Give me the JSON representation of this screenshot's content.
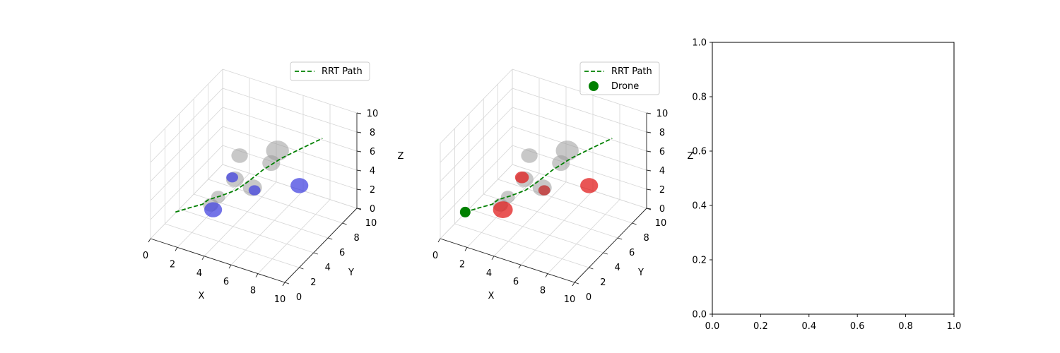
{
  "figure": {
    "background": "#ffffff"
  },
  "chart_data": [
    {
      "type": "scatter",
      "projection": "3d",
      "xlabel": "X",
      "ylabel": "Y",
      "zlabel": "Z",
      "xlim": [
        0,
        10
      ],
      "ylim": [
        0,
        10
      ],
      "zlim": [
        0,
        10
      ],
      "xticks": [
        "0",
        "2",
        "4",
        "6",
        "8",
        "10"
      ],
      "yticks": [
        "0",
        "2",
        "4",
        "6",
        "8",
        "10"
      ],
      "zticks": [
        "0",
        "2",
        "4",
        "6",
        "8",
        "10"
      ],
      "grid": true,
      "legend_position": "top-right",
      "legend": [
        {
          "label": "RRT Path",
          "style": "dashed-line",
          "color": "#008000"
        }
      ],
      "obstacles": [
        {
          "x": 2.6,
          "y": 3.5,
          "z": 2.0,
          "r": 0.6
        },
        {
          "x": 3.0,
          "y": 3.8,
          "z": 2.8,
          "r": 0.55
        },
        {
          "x": 3.6,
          "y": 5.0,
          "z": 4.0,
          "r": 0.7
        },
        {
          "x": 3.2,
          "y": 6.4,
          "z": 5.2,
          "r": 0.65
        },
        {
          "x": 4.8,
          "y": 5.2,
          "z": 3.5,
          "r": 0.75
        },
        {
          "x": 5.5,
          "y": 6.5,
          "z": 5.4,
          "r": 0.7
        },
        {
          "x": 5.7,
          "y": 7.0,
          "z": 6.4,
          "r": 0.9
        }
      ],
      "markers": [
        {
          "x": 3.0,
          "y": 3.1,
          "z": 2.0,
          "r": 0.45,
          "color": "#3f3fdf"
        },
        {
          "x": 3.4,
          "y": 5.0,
          "z": 4.1,
          "r": 0.3,
          "color": "#3f3fdf"
        },
        {
          "x": 4.9,
          "y": 5.3,
          "z": 3.2,
          "r": 0.3,
          "color": "#3f3fdf"
        },
        {
          "x": 7.6,
          "y": 6.5,
          "z": 4.0,
          "r": 0.45,
          "color": "#3f3fdf"
        }
      ],
      "series": [
        {
          "name": "RRT Path",
          "style": "dashed",
          "color": "#008000",
          "points": [
            {
              "x": 1.0,
              "y": 1.6,
              "z": 2.0
            },
            {
              "x": 1.6,
              "y": 2.4,
              "z": 2.1
            },
            {
              "x": 2.2,
              "y": 3.1,
              "z": 2.2
            },
            {
              "x": 2.6,
              "y": 3.2,
              "z": 2.8
            },
            {
              "x": 3.3,
              "y": 3.6,
              "z": 3.2
            },
            {
              "x": 4.0,
              "y": 4.4,
              "z": 3.5
            },
            {
              "x": 4.6,
              "y": 5.1,
              "z": 4.2
            },
            {
              "x": 5.3,
              "y": 5.7,
              "z": 5.2
            },
            {
              "x": 6.3,
              "y": 6.5,
              "z": 6.3
            },
            {
              "x": 7.4,
              "y": 7.4,
              "z": 7.2
            },
            {
              "x": 8.4,
              "y": 8.2,
              "z": 8.0
            }
          ]
        }
      ]
    },
    {
      "type": "scatter",
      "projection": "3d",
      "xlabel": "X",
      "ylabel": "Y",
      "zlabel": "Z",
      "xlim": [
        0,
        10
      ],
      "ylim": [
        0,
        10
      ],
      "zlim": [
        0,
        10
      ],
      "xticks": [
        "0",
        "2",
        "4",
        "6",
        "8",
        "10"
      ],
      "yticks": [
        "0",
        "2",
        "4",
        "6",
        "8",
        "10"
      ],
      "zticks": [
        "0",
        "2",
        "4",
        "6",
        "8",
        "10"
      ],
      "grid": true,
      "legend_position": "top-right",
      "legend": [
        {
          "label": "RRT Path",
          "style": "dashed-line",
          "color": "#008000"
        },
        {
          "label": "Drone",
          "style": "marker",
          "color": "#008000"
        }
      ],
      "obstacles": [
        {
          "x": 2.6,
          "y": 3.5,
          "z": 2.0,
          "r": 0.6
        },
        {
          "x": 3.0,
          "y": 3.8,
          "z": 2.8,
          "r": 0.55
        },
        {
          "x": 3.6,
          "y": 5.0,
          "z": 4.0,
          "r": 0.7
        },
        {
          "x": 3.2,
          "y": 6.4,
          "z": 5.2,
          "r": 0.65
        },
        {
          "x": 4.8,
          "y": 5.2,
          "z": 3.5,
          "r": 0.75
        },
        {
          "x": 5.5,
          "y": 6.5,
          "z": 5.4,
          "r": 0.7
        },
        {
          "x": 5.7,
          "y": 7.0,
          "z": 6.4,
          "r": 0.9
        }
      ],
      "markers": [
        {
          "x": 3.0,
          "y": 3.1,
          "z": 2.0,
          "r": 0.5,
          "color": "#e01515"
        },
        {
          "x": 3.4,
          "y": 5.0,
          "z": 4.1,
          "r": 0.35,
          "color": "#e01515"
        },
        {
          "x": 4.9,
          "y": 5.3,
          "z": 3.2,
          "r": 0.3,
          "color": "#c02020"
        },
        {
          "x": 7.6,
          "y": 6.5,
          "z": 4.0,
          "r": 0.45,
          "color": "#e01515"
        }
      ],
      "series": [
        {
          "name": "RRT Path",
          "style": "dashed",
          "color": "#008000",
          "points": [
            {
              "x": 1.0,
              "y": 1.6,
              "z": 2.0
            },
            {
              "x": 1.6,
              "y": 2.4,
              "z": 2.1
            },
            {
              "x": 2.2,
              "y": 3.1,
              "z": 2.2
            },
            {
              "x": 2.6,
              "y": 3.2,
              "z": 2.8
            },
            {
              "x": 3.3,
              "y": 3.6,
              "z": 3.2
            },
            {
              "x": 4.0,
              "y": 4.4,
              "z": 3.5
            },
            {
              "x": 4.6,
              "y": 5.1,
              "z": 4.2
            },
            {
              "x": 5.3,
              "y": 5.7,
              "z": 5.2
            },
            {
              "x": 6.3,
              "y": 6.5,
              "z": 6.3
            },
            {
              "x": 7.4,
              "y": 7.4,
              "z": 7.2
            },
            {
              "x": 8.4,
              "y": 8.2,
              "z": 8.0
            }
          ]
        },
        {
          "name": "Drone",
          "type": "point",
          "color": "#008000",
          "points": [
            {
              "x": 1.0,
              "y": 1.6,
              "z": 2.0
            }
          ]
        }
      ]
    },
    {
      "type": "line",
      "xlim": [
        0.0,
        1.0
      ],
      "ylim": [
        0.0,
        1.0
      ],
      "xticks": [
        "0.0",
        "0.2",
        "0.4",
        "0.6",
        "0.8",
        "1.0"
      ],
      "yticks": [
        "0.0",
        "0.2",
        "0.4",
        "0.6",
        "0.8",
        "1.0"
      ],
      "series": []
    }
  ]
}
